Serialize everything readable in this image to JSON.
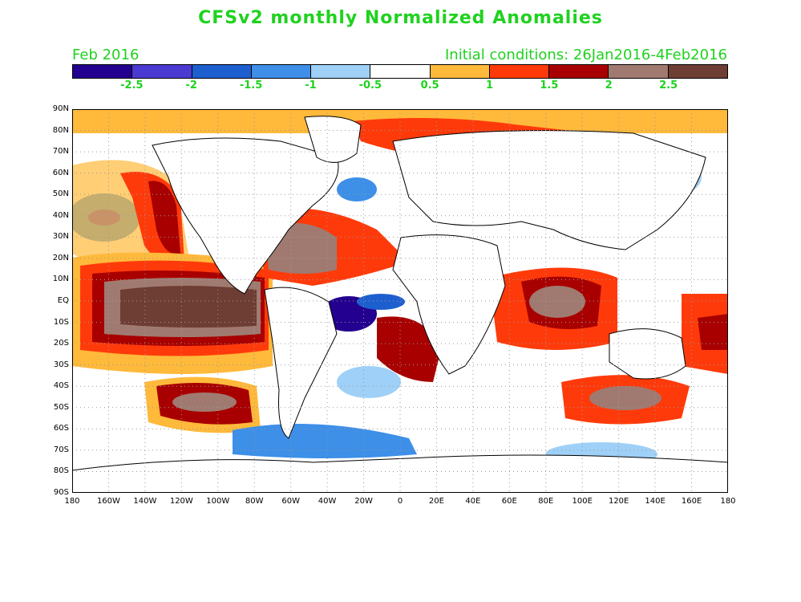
{
  "header": {
    "title": "CFSv2 monthly Normalized Anomalies",
    "month": "Feb 2016",
    "initial_conditions": "Initial conditions: 26Jan2016-4Feb2016"
  },
  "colorbar": {
    "colors": [
      "#23008f",
      "#4b3ad1",
      "#1e5fd0",
      "#3d8fe8",
      "#9fd0f7",
      "#ffffff",
      "#ffb93b",
      "#ff3a0a",
      "#a80000",
      "#a07a70",
      "#6e3d33"
    ],
    "labels": [
      "-2.5",
      "-2",
      "-1.5",
      "-1",
      "-0.5",
      "0.5",
      "1",
      "1.5",
      "2",
      "2.5"
    ]
  },
  "axes": {
    "lat_labels": [
      "90N",
      "80N",
      "70N",
      "60N",
      "50N",
      "40N",
      "30N",
      "20N",
      "10N",
      "EQ",
      "10S",
      "20S",
      "30S",
      "40S",
      "50S",
      "60S",
      "70S",
      "80S",
      "90S"
    ],
    "lon_labels": [
      "180",
      "160W",
      "140W",
      "120W",
      "100W",
      "80W",
      "60W",
      "40W",
      "20W",
      "0",
      "20E",
      "40E",
      "60E",
      "80E",
      "100E",
      "120E",
      "140E",
      "160E",
      "180"
    ]
  },
  "map_colors": {
    "land": "#ffffff",
    "coast": "#000000",
    "grid": "#9a9a9a",
    "weak_pos": "#ffb93b",
    "mod_pos": "#ff3a0a",
    "strong_pos": "#a80000",
    "very_pos": "#a07a70",
    "extreme_pos": "#6e3d33",
    "weak_neg": "#9fd0f7",
    "mod_neg": "#3d8fe8",
    "strong_neg": "#1e5fd0",
    "extreme_neg": "#23008f"
  }
}
